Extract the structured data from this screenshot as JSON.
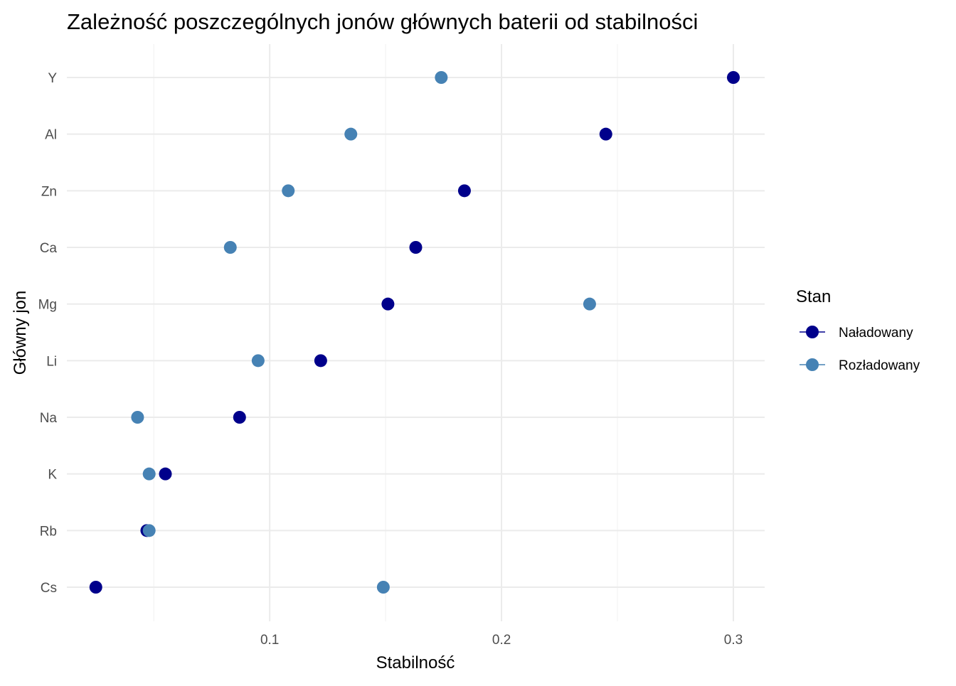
{
  "chart_data": {
    "type": "scatter",
    "title": "Zależność poszczególnych jonów głównych baterii od stabilności",
    "xlabel": "Stabilność",
    "ylabel": "Główny jon",
    "xlim": [
      0.0125,
      0.3135
    ],
    "x_ticks": [
      0.1,
      0.2,
      0.3
    ],
    "x_tick_labels": [
      "0.1",
      "0.2",
      "0.3"
    ],
    "categories": [
      "Y",
      "Al",
      "Zn",
      "Ca",
      "Mg",
      "Li",
      "Na",
      "K",
      "Rb",
      "Cs"
    ],
    "grid": true,
    "legend": {
      "title": "Stan",
      "position": "right"
    },
    "series": [
      {
        "name": "Naładowany",
        "color": "#00008b",
        "values": [
          0.3,
          0.245,
          0.184,
          0.163,
          0.151,
          0.122,
          0.087,
          0.055,
          0.047,
          0.025
        ]
      },
      {
        "name": "Rozładowany",
        "color": "#4682b4",
        "values": [
          0.174,
          0.135,
          0.108,
          0.083,
          0.238,
          0.095,
          0.043,
          0.048,
          0.048,
          0.149
        ]
      }
    ]
  }
}
